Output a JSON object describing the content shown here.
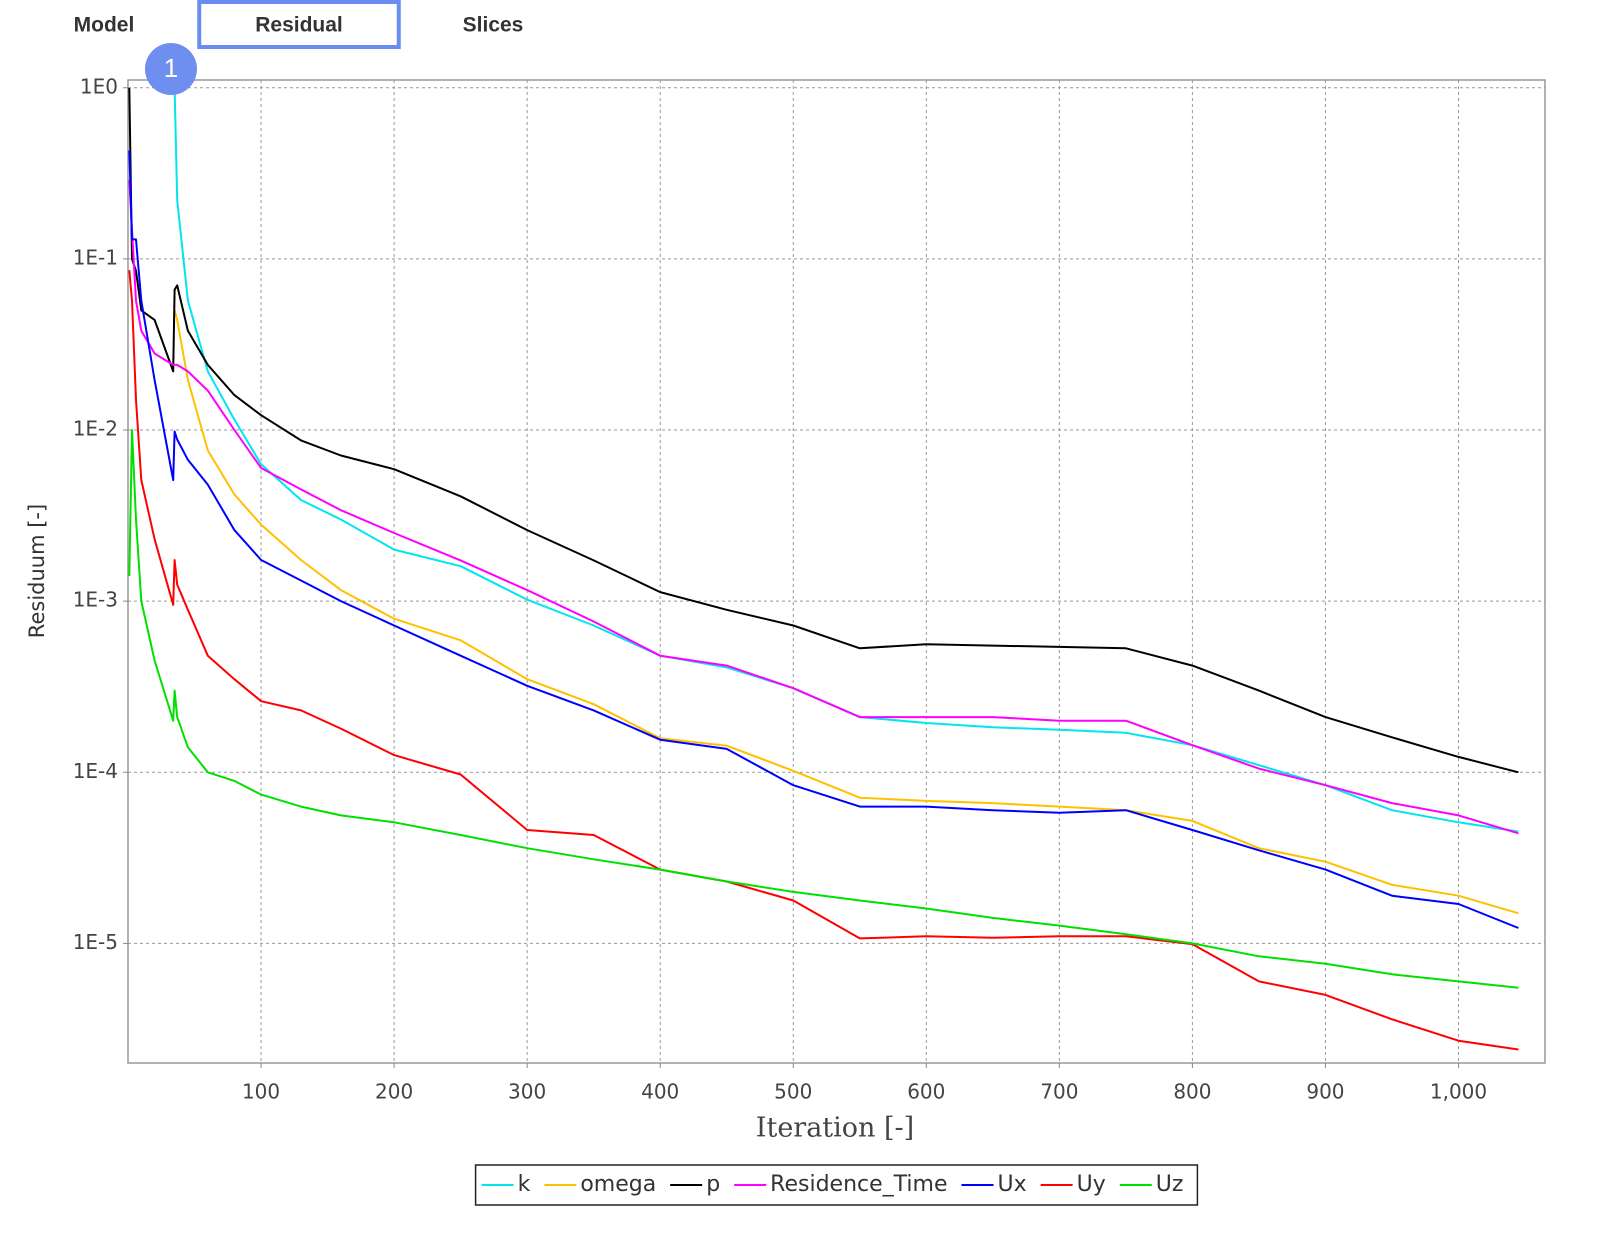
{
  "tabs": [
    {
      "label": "Model"
    },
    {
      "label": "Residual",
      "selected": true
    },
    {
      "label": "Slices"
    }
  ],
  "badge": "1",
  "chart_data": {
    "type": "line",
    "x_label": "Iteration [-]",
    "y_label": "Residuum [-]",
    "yscale": "log",
    "grid": true,
    "legend": "bottom",
    "xlim": [
      0,
      1065
    ],
    "ylim": [
      2e-06,
      1.11
    ],
    "xticks": [
      100,
      200,
      300,
      400,
      500,
      600,
      700,
      800,
      900,
      {
        "value": 1000,
        "label": "1,000"
      }
    ],
    "yticks": [
      {
        "value": 1,
        "label": "1E0"
      },
      {
        "value": 0.1,
        "label": "1E-1"
      },
      {
        "value": 0.01,
        "label": "1E-2"
      },
      {
        "value": 0.001,
        "label": "1E-3"
      },
      {
        "value": 0.0001,
        "label": "1E-4"
      },
      {
        "value": 1e-05,
        "label": "1E-5"
      }
    ],
    "x": [
      1,
      3,
      6,
      10,
      20,
      34,
      35,
      37,
      45,
      60,
      80,
      100,
      130,
      160,
      200,
      250,
      300,
      350,
      400,
      450,
      500,
      550,
      600,
      650,
      700,
      750,
      800,
      850,
      900,
      950,
      1000,
      1045
    ],
    "series": [
      {
        "name": "k",
        "color": "#00e5ee",
        "values": [
          null,
          null,
          null,
          null,
          null,
          null,
          1.0,
          0.22,
          0.057,
          0.022,
          0.0115,
          0.0063,
          0.0039,
          0.003,
          0.002,
          0.0016,
          0.00102,
          0.00072,
          0.00048,
          0.00041,
          0.00031,
          0.00021,
          0.000194,
          0.000183,
          0.000177,
          0.00017,
          0.000144,
          0.00011,
          8.4e-05,
          6e-05,
          5.1e-05,
          4.5e-05
        ]
      },
      {
        "name": "omega",
        "color": "#ffc000",
        "values": [
          null,
          null,
          null,
          null,
          null,
          null,
          0.05,
          0.044,
          0.0196,
          0.0076,
          0.0042,
          0.0028,
          0.00174,
          0.00116,
          0.00079,
          0.00059,
          0.00035,
          0.00025,
          0.000158,
          0.000143,
          0.000102,
          7.1e-05,
          6.8e-05,
          6.6e-05,
          6.3e-05,
          6e-05,
          5.2e-05,
          3.6e-05,
          3e-05,
          2.2e-05,
          1.9e-05,
          1.5e-05
        ]
      },
      {
        "name": "p",
        "color": "#000000",
        "values": [
          1.0,
          0.1,
          0.085,
          0.05,
          0.044,
          0.022,
          0.066,
          0.07,
          0.038,
          0.024,
          0.016,
          0.0122,
          0.0087,
          0.0071,
          0.0059,
          0.0041,
          0.0026,
          0.00173,
          0.00113,
          0.00089,
          0.00072,
          0.00053,
          0.00056,
          0.00055,
          0.00054,
          0.00053,
          0.00042,
          0.0003,
          0.00021,
          0.00016,
          0.000123,
          0.0001
        ]
      },
      {
        "name": "Residence_Time",
        "color": "#ff00ff",
        "values": [
          0.29,
          0.148,
          0.057,
          0.038,
          0.028,
          0.024,
          0.024,
          0.024,
          0.022,
          0.017,
          0.01,
          0.006,
          0.0045,
          0.0034,
          0.0025,
          0.00173,
          0.00116,
          0.00076,
          0.00048,
          0.00042,
          0.00031,
          0.00021,
          0.00021,
          0.00021,
          0.0002,
          0.0002,
          0.000144,
          0.000105,
          8.4e-05,
          6.6e-05,
          5.6e-05,
          4.4e-05
        ]
      },
      {
        "name": "Ux",
        "color": "#0000ff",
        "values": [
          0.43,
          0.13,
          0.13,
          0.057,
          0.0196,
          0.0051,
          0.0098,
          0.0088,
          0.0067,
          0.0048,
          0.0026,
          0.00174,
          0.00132,
          0.001,
          0.00072,
          0.00048,
          0.00032,
          0.00023,
          0.000155,
          0.000137,
          8.4e-05,
          6.3e-05,
          6.3e-05,
          6e-05,
          5.8e-05,
          6e-05,
          4.6e-05,
          3.5e-05,
          2.7e-05,
          1.9e-05,
          1.7e-05,
          1.23e-05
        ]
      },
      {
        "name": "Uy",
        "color": "#ff0000",
        "values": [
          0.086,
          0.057,
          0.015,
          0.0051,
          0.0023,
          0.00095,
          0.00174,
          0.00125,
          0.00089,
          0.00048,
          0.00035,
          0.00026,
          0.00023,
          0.00018,
          0.000126,
          9.7e-05,
          4.6e-05,
          4.3e-05,
          2.7e-05,
          2.3e-05,
          1.78e-05,
          1.07e-05,
          1.1e-05,
          1.08e-05,
          1.1e-05,
          1.1e-05,
          9.9e-06,
          6e-06,
          5e-06,
          3.6e-06,
          2.7e-06,
          2.4e-06
        ]
      },
      {
        "name": "Uz",
        "color": "#00e000",
        "values": [
          0.0014,
          0.01,
          0.003,
          0.001,
          0.00045,
          0.0002,
          0.0003,
          0.00021,
          0.00014,
          0.0001,
          8.9e-05,
          7.4e-05,
          6.3e-05,
          5.6e-05,
          5.1e-05,
          4.3e-05,
          3.6e-05,
          3.1e-05,
          2.7e-05,
          2.3e-05,
          2e-05,
          1.78e-05,
          1.6e-05,
          1.41e-05,
          1.27e-05,
          1.13e-05,
          1e-05,
          8.4e-06,
          7.6e-06,
          6.6e-06,
          6e-06,
          5.5e-06
        ]
      }
    ]
  }
}
